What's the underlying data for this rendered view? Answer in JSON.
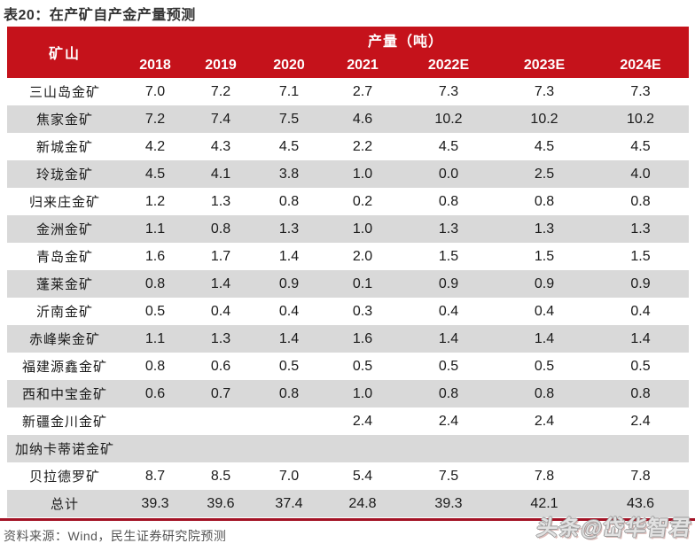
{
  "title": "表20：在产矿自产金产量预测",
  "table": {
    "corner_header": "矿山",
    "group_header": "产量（吨）",
    "year_headers": [
      "2018",
      "2019",
      "2020",
      "2021",
      "2022E",
      "2023E",
      "2024E"
    ],
    "rows": [
      {
        "name": "三山岛金矿",
        "values": [
          "7.0",
          "7.2",
          "7.1",
          "2.7",
          "7.3",
          "7.3",
          "7.3"
        ]
      },
      {
        "name": "焦家金矿",
        "values": [
          "7.2",
          "7.4",
          "7.5",
          "4.6",
          "10.2",
          "10.2",
          "10.2"
        ]
      },
      {
        "name": "新城金矿",
        "values": [
          "4.2",
          "4.3",
          "4.5",
          "2.2",
          "4.5",
          "4.5",
          "4.5"
        ]
      },
      {
        "name": "玲珑金矿",
        "values": [
          "4.5",
          "4.1",
          "3.8",
          "1.0",
          "0.0",
          "2.5",
          "4.0"
        ]
      },
      {
        "name": "归来庄金矿",
        "values": [
          "1.2",
          "1.3",
          "0.8",
          "0.2",
          "0.8",
          "0.8",
          "0.8"
        ]
      },
      {
        "name": "金洲金矿",
        "values": [
          "1.1",
          "0.8",
          "1.3",
          "1.0",
          "1.3",
          "1.3",
          "1.3"
        ]
      },
      {
        "name": "青岛金矿",
        "values": [
          "1.6",
          "1.7",
          "1.4",
          "2.0",
          "1.5",
          "1.5",
          "1.5"
        ]
      },
      {
        "name": "蓬莱金矿",
        "values": [
          "0.8",
          "1.4",
          "0.9",
          "0.1",
          "0.9",
          "0.9",
          "0.9"
        ]
      },
      {
        "name": "沂南金矿",
        "values": [
          "0.5",
          "0.4",
          "0.4",
          "0.3",
          "0.4",
          "0.4",
          "0.4"
        ]
      },
      {
        "name": "赤峰柴金矿",
        "values": [
          "1.1",
          "1.3",
          "1.4",
          "1.6",
          "1.4",
          "1.4",
          "1.4"
        ]
      },
      {
        "name": "福建源鑫金矿",
        "values": [
          "0.8",
          "0.6",
          "0.5",
          "0.5",
          "0.5",
          "0.5",
          "0.5"
        ]
      },
      {
        "name": "西和中宝金矿",
        "values": [
          "0.6",
          "0.7",
          "0.8",
          "1.0",
          "0.8",
          "0.8",
          "0.8"
        ]
      },
      {
        "name": "新疆金川金矿",
        "values": [
          "",
          "",
          "",
          "2.4",
          "2.4",
          "2.4",
          "2.4"
        ]
      },
      {
        "name": "加纳卡蒂诺金矿",
        "values": [
          "",
          "",
          "",
          "",
          "",
          "",
          ""
        ]
      },
      {
        "name": "贝拉德罗矿",
        "values": [
          "8.7",
          "8.5",
          "7.0",
          "5.4",
          "7.5",
          "7.8",
          "7.8"
        ]
      },
      {
        "name": "总计",
        "values": [
          "39.3",
          "39.6",
          "37.4",
          "24.8",
          "39.3",
          "42.1",
          "43.6"
        ]
      }
    ]
  },
  "footer": {
    "source": "资料来源：Wind，民生证券研究院预测"
  },
  "watermark": "头条@岱华智君",
  "colors": {
    "header_red": "#C5121B",
    "line_red": "#A31225",
    "stripe_gray": "#D9D9D9",
    "title_color": "#333333",
    "footer_color": "#555555"
  },
  "chart_data": {
    "type": "table",
    "title": "表20：在产矿自产金产量预测",
    "group_header": "产量（吨）",
    "columns": [
      "矿山",
      "2018",
      "2019",
      "2020",
      "2021",
      "2022E",
      "2023E",
      "2024E"
    ],
    "rows": [
      [
        "三山岛金矿",
        7.0,
        7.2,
        7.1,
        2.7,
        7.3,
        7.3,
        7.3
      ],
      [
        "焦家金矿",
        7.2,
        7.4,
        7.5,
        4.6,
        10.2,
        10.2,
        10.2
      ],
      [
        "新城金矿",
        4.2,
        4.3,
        4.5,
        2.2,
        4.5,
        4.5,
        4.5
      ],
      [
        "玲珑金矿",
        4.5,
        4.1,
        3.8,
        1.0,
        0.0,
        2.5,
        4.0
      ],
      [
        "归来庄金矿",
        1.2,
        1.3,
        0.8,
        0.2,
        0.8,
        0.8,
        0.8
      ],
      [
        "金洲金矿",
        1.1,
        0.8,
        1.3,
        1.0,
        1.3,
        1.3,
        1.3
      ],
      [
        "青岛金矿",
        1.6,
        1.7,
        1.4,
        2.0,
        1.5,
        1.5,
        1.5
      ],
      [
        "蓬莱金矿",
        0.8,
        1.4,
        0.9,
        0.1,
        0.9,
        0.9,
        0.9
      ],
      [
        "沂南金矿",
        0.5,
        0.4,
        0.4,
        0.3,
        0.4,
        0.4,
        0.4
      ],
      [
        "赤峰柴金矿",
        1.1,
        1.3,
        1.4,
        1.6,
        1.4,
        1.4,
        1.4
      ],
      [
        "福建源鑫金矿",
        0.8,
        0.6,
        0.5,
        0.5,
        0.5,
        0.5,
        0.5
      ],
      [
        "西和中宝金矿",
        0.6,
        0.7,
        0.8,
        1.0,
        0.8,
        0.8,
        0.8
      ],
      [
        "新疆金川金矿",
        null,
        null,
        null,
        2.4,
        2.4,
        2.4,
        2.4
      ],
      [
        "加纳卡蒂诺金矿",
        null,
        null,
        null,
        null,
        null,
        null,
        null
      ],
      [
        "贝拉德罗矿",
        8.7,
        8.5,
        7.0,
        5.4,
        7.5,
        7.8,
        7.8
      ],
      [
        "总计",
        39.3,
        39.6,
        37.4,
        24.8,
        39.3,
        42.1,
        43.6
      ]
    ],
    "source_note": "资料来源：Wind，民生证券研究院预测"
  }
}
